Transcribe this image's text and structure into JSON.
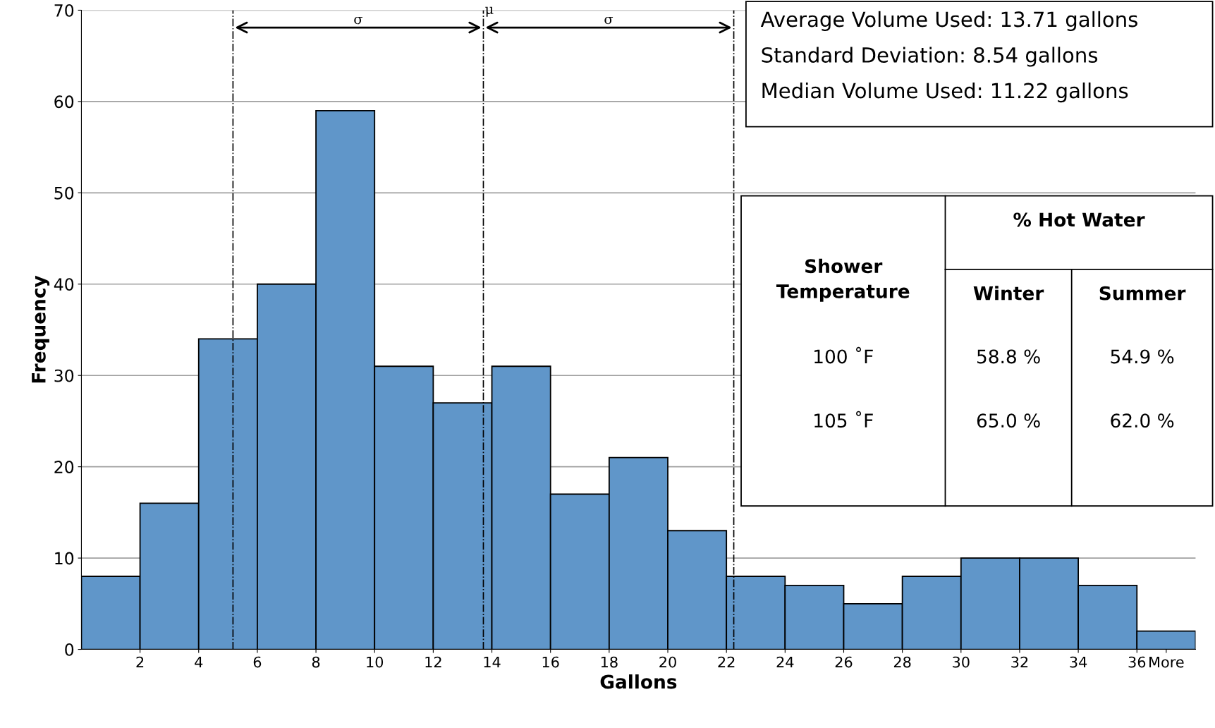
{
  "chart_data": {
    "type": "histogram",
    "xlabel": "Gallons",
    "ylabel": "Frequency",
    "bins": [
      0,
      2,
      4,
      6,
      8,
      10,
      12,
      14,
      16,
      18,
      20,
      22,
      24,
      26,
      28,
      30,
      32,
      34,
      36,
      38
    ],
    "values": [
      8,
      16,
      34,
      40,
      59,
      31,
      27,
      31,
      17,
      21,
      13,
      8,
      7,
      5,
      8,
      10,
      10,
      7,
      2
    ],
    "color": "#6096c9",
    "xlim": [
      0,
      38
    ],
    "xticks": [
      2,
      4,
      6,
      8,
      10,
      12,
      14,
      16,
      18,
      20,
      22,
      24,
      26,
      28,
      30,
      32,
      34,
      36,
      {
        "value": 37,
        "label": "More"
      }
    ],
    "ylim": [
      0,
      70
    ],
    "yticks": [
      0,
      10,
      20,
      30,
      40,
      50,
      60,
      70
    ],
    "grid": "y",
    "ref_lines": [
      {
        "axis": "x",
        "value": 5.17,
        "label": null,
        "color": "#000000",
        "line_style": "dashdot"
      },
      {
        "axis": "x",
        "value": 13.71,
        "label": "μ",
        "color": "#000000",
        "line_style": "dashdot"
      },
      {
        "axis": "x",
        "value": 22.25,
        "label": null,
        "color": "#000000",
        "line_style": "dashdot"
      }
    ],
    "annotations": [
      "σ",
      "σ",
      "Average Volume Used: 13.71 gallons",
      "Standard Deviation: 8.54 gallons",
      "Median Volume Used: 11.22 gallons",
      "Shower\nTemperature",
      "% Hot Water",
      "Winter",
      "Summer",
      "100 ˚F",
      "58.8 %",
      "54.9 %",
      "105 ˚F",
      "65.0 %",
      "62.0 %"
    ]
  }
}
